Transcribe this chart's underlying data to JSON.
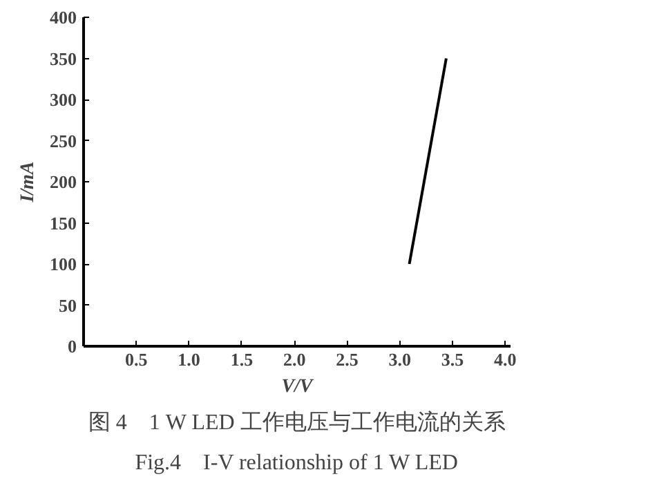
{
  "chart_data": {
    "type": "line",
    "xlabel": "V/V",
    "ylabel": "I/mA",
    "x": [
      3.09,
      3.44
    ],
    "series": [
      {
        "color": "#000000",
        "values": [
          100,
          350
        ]
      }
    ],
    "xlim": [
      0,
      4.05
    ],
    "ylim": [
      0,
      400
    ],
    "xticks": [
      0.5,
      {
        "value": 1,
        "label": "1.0"
      },
      1.5,
      {
        "value": 2,
        "label": "2.0"
      },
      2.5,
      {
        "value": 3,
        "label": "3.0"
      },
      3.5,
      {
        "value": 4,
        "label": "4.0"
      }
    ],
    "yticks": [
      0,
      50,
      100,
      150,
      200,
      250,
      300,
      350,
      400
    ],
    "grid": false,
    "marker": "none",
    "line_style": "solid",
    "annotations": [
      "图 4　1 W LED 工作电压与工作电流的关系",
      "Fig.4　I-V relationship of 1 W LED"
    ]
  }
}
